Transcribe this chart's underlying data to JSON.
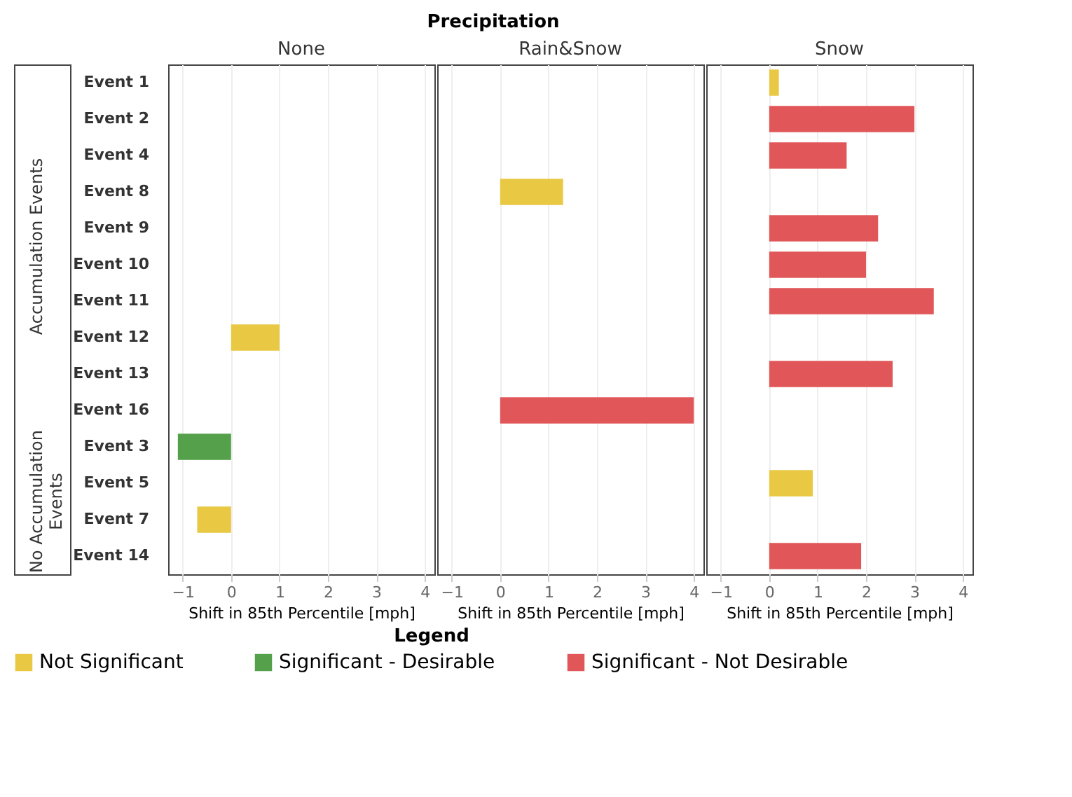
{
  "chart_data": [
    {
      "type": "bar",
      "title": "None",
      "orientation": "horizontal",
      "stacked": true,
      "xlabel": "Shift in 85th Percentile [mph]",
      "categories": [
        "Event 1",
        "Event 2",
        "Event 4",
        "Event 8",
        "Event 9",
        "Event 10",
        "Event 11",
        "Event 12",
        "Event 13",
        "Event 16",
        "Event 3",
        "Event 5",
        "Event 7",
        "Event 14"
      ],
      "xlim": [
        -1.3,
        4.2
      ],
      "xticks": [
        -1,
        0,
        1,
        2,
        3,
        4
      ],
      "grid": "x",
      "legend": "bottom",
      "legend_title": "Legend",
      "annotations": [
        "Precipitation",
        "Accumulation Events",
        "No Accumulation Events"
      ],
      "series": [
        {
          "name": "Not Significant",
          "color": "#e9c843",
          "values": [
            null,
            null,
            null,
            null,
            null,
            null,
            null,
            1.0,
            null,
            null,
            null,
            null,
            -0.7,
            null
          ]
        },
        {
          "name": "Significant - Desirable",
          "color": "#55a04a",
          "values": [
            null,
            null,
            null,
            null,
            null,
            null,
            null,
            null,
            null,
            null,
            -1.1,
            null,
            null,
            null
          ]
        },
        {
          "name": "Significant - Not Desirable",
          "color": "#e15759",
          "values": [
            null,
            null,
            null,
            null,
            null,
            null,
            null,
            null,
            null,
            null,
            null,
            null,
            null,
            null
          ]
        }
      ]
    },
    {
      "type": "bar",
      "title": "Rain&Snow",
      "orientation": "horizontal",
      "stacked": true,
      "xlabel": "Shift in 85th Percentile [mph]",
      "categories": [
        "Event 1",
        "Event 2",
        "Event 4",
        "Event 8",
        "Event 9",
        "Event 10",
        "Event 11",
        "Event 12",
        "Event 13",
        "Event 16",
        "Event 3",
        "Event 5",
        "Event 7",
        "Event 14"
      ],
      "xlim": [
        -1.3,
        4.2
      ],
      "xticks": [
        -1,
        0,
        1,
        2,
        3,
        4
      ],
      "grid": "x",
      "tick_labels": "x",
      "series": [
        {
          "color": "#e9c843",
          "values": [
            null,
            null,
            null,
            1.3,
            null,
            null,
            null,
            null,
            null,
            null,
            null,
            null,
            null,
            null
          ]
        },
        {
          "color": "#55a04a",
          "values": [
            null,
            null,
            null,
            null,
            null,
            null,
            null,
            null,
            null,
            null,
            null,
            null,
            null,
            null
          ]
        },
        {
          "color": "#e15759",
          "values": [
            null,
            null,
            null,
            null,
            null,
            null,
            null,
            null,
            null,
            4.0,
            null,
            null,
            null,
            null
          ]
        }
      ]
    },
    {
      "type": "bar",
      "title": "Snow",
      "orientation": "horizontal",
      "stacked": true,
      "xlabel": "Shift in 85th Percentile [mph]",
      "categories": [
        "Event 1",
        "Event 2",
        "Event 4",
        "Event 8",
        "Event 9",
        "Event 10",
        "Event 11",
        "Event 12",
        "Event 13",
        "Event 16",
        "Event 3",
        "Event 5",
        "Event 7",
        "Event 14"
      ],
      "xlim": [
        -1.3,
        4.2
      ],
      "xticks": [
        -1,
        0,
        1,
        2,
        3,
        4
      ],
      "grid": "x",
      "tick_labels": "x",
      "series": [
        {
          "color": "#e9c843",
          "values": [
            0.2,
            null,
            null,
            null,
            null,
            null,
            null,
            null,
            null,
            null,
            null,
            0.9,
            null,
            null
          ]
        },
        {
          "color": "#55a04a",
          "values": [
            null,
            null,
            null,
            null,
            null,
            null,
            null,
            null,
            null,
            null,
            null,
            null,
            null,
            null
          ]
        },
        {
          "color": "#e15759",
          "values": [
            null,
            3.0,
            1.6,
            null,
            2.25,
            2.0,
            3.4,
            null,
            2.55,
            null,
            null,
            null,
            null,
            1.9
          ]
        }
      ]
    }
  ]
}
